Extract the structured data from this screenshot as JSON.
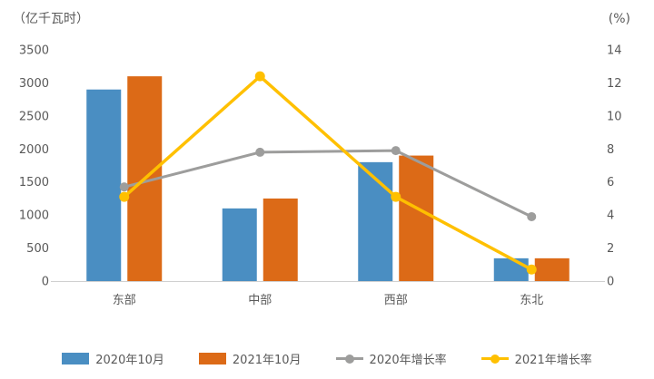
{
  "chart_data": {
    "type": "bar+line",
    "title": "",
    "categories": [
      "东部",
      "中部",
      "西部",
      "东北"
    ],
    "bar_series": [
      {
        "name": "2020年10月",
        "color": "#4A8EC2",
        "axis": "left",
        "values": [
          2900,
          1100,
          1800,
          345
        ]
      },
      {
        "name": "2021年10月",
        "color": "#DC6A17",
        "axis": "left",
        "values": [
          3100,
          1250,
          1900,
          345
        ]
      }
    ],
    "line_series": [
      {
        "name": "2020年增长率",
        "color": "#9D9D9C",
        "axis": "right",
        "values": [
          5.7,
          7.8,
          7.9,
          3.9
        ]
      },
      {
        "name": "2021年增长率",
        "color": "#FFC000",
        "axis": "right",
        "values": [
          5.1,
          12.4,
          5.1,
          0.7
        ]
      }
    ],
    "left_axis": {
      "title": "（亿千瓦时）",
      "title_color": "#A0522D",
      "min": 0,
      "max": 3500,
      "step": 500
    },
    "right_axis": {
      "title": "(%)",
      "title_color": "#595959",
      "min": 0,
      "max": 14,
      "step": 2
    },
    "grid": "off",
    "legend_position": "bottom"
  }
}
